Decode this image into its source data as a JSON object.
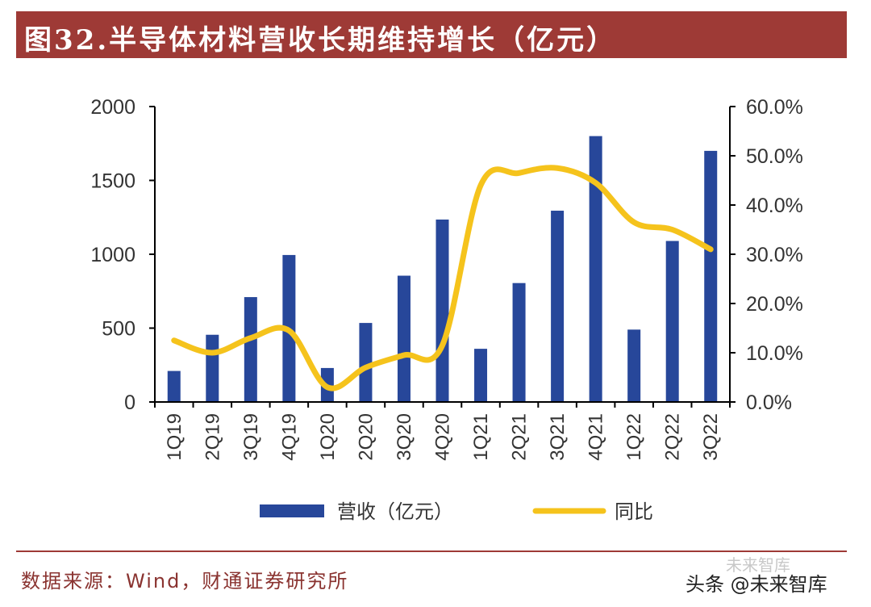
{
  "title": "图32.半导体材料营收长期维持增长（亿元）",
  "source": "数据来源：Wind，财通证券研究所",
  "watermark": "头条 @未来智库",
  "watermark_faint": "未来智库",
  "colors": {
    "bar": "#27479a",
    "line": "#f5c31c",
    "title_bg": "#9e3a36",
    "axis": "#000000"
  },
  "chart_data": {
    "type": "bar+line",
    "categories": [
      "1Q19",
      "2Q19",
      "3Q19",
      "4Q19",
      "1Q20",
      "2Q20",
      "3Q20",
      "4Q20",
      "1Q21",
      "2Q21",
      "3Q21",
      "4Q21",
      "1Q22",
      "2Q22",
      "3Q22"
    ],
    "series": [
      {
        "name": "营收（亿元）",
        "type": "bar",
        "axis": "left",
        "values": [
          210,
          455,
          710,
          995,
          230,
          535,
          855,
          1235,
          360,
          805,
          1295,
          1800,
          490,
          1090,
          1700
        ]
      },
      {
        "name": "同比",
        "type": "line",
        "axis": "right",
        "values": [
          0.125,
          0.1,
          0.13,
          0.145,
          0.03,
          0.07,
          0.095,
          0.115,
          0.44,
          0.465,
          0.475,
          0.445,
          0.365,
          0.35,
          0.31
        ]
      }
    ],
    "y_left": {
      "min": 0,
      "max": 2000,
      "ticks": [
        0,
        500,
        1000,
        1500,
        2000
      ],
      "tick_labels": [
        "0",
        "500",
        "1000",
        "1500",
        "2000"
      ]
    },
    "y_right": {
      "min": 0,
      "max": 0.6,
      "ticks": [
        0,
        0.1,
        0.2,
        0.3,
        0.4,
        0.5,
        0.6
      ],
      "tick_labels": [
        "0.0%",
        "10.0%",
        "20.0%",
        "30.0%",
        "40.0%",
        "50.0%",
        "60.0%"
      ]
    },
    "legend": {
      "position": "bottom",
      "items": [
        "营收（亿元）",
        "同比"
      ]
    }
  }
}
